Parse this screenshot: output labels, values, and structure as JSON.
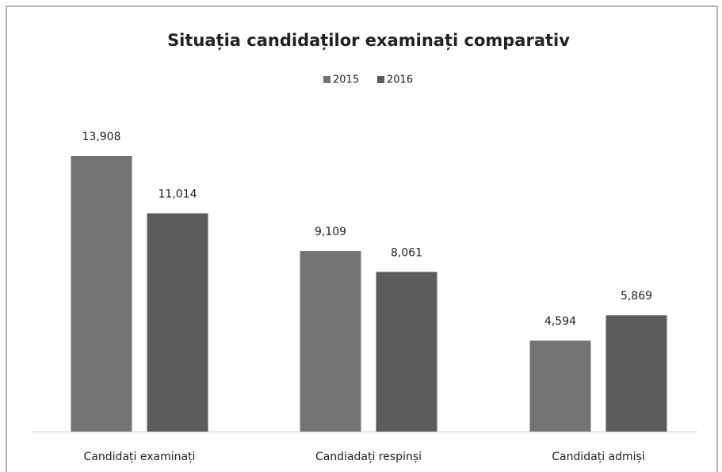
{
  "chart_data": {
    "type": "bar",
    "title": "Situația candidaților examinați comparativ",
    "categories": [
      "Candidați examinați",
      "Candiadați respinși",
      "Candidați admiși"
    ],
    "series": [
      {
        "name": "2015",
        "color": "#737373",
        "values": [
          13908,
          9109,
          4594
        ],
        "value_labels": [
          "13,908",
          "9,109",
          "4,594"
        ]
      },
      {
        "name": "2016",
        "color": "#5c5c5c",
        "values": [
          11014,
          8061,
          5869
        ],
        "value_labels": [
          "11,014",
          "8,061",
          "5,869"
        ]
      }
    ],
    "legend": "top"
  }
}
